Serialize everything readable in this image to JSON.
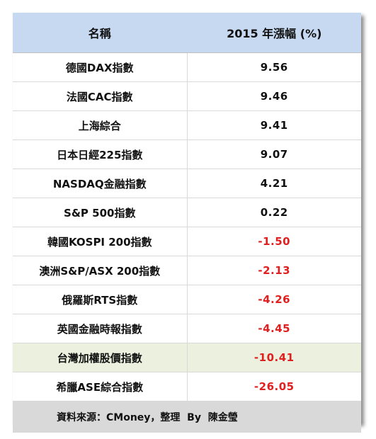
{
  "header": {
    "col_name": "名稱",
    "col_change": "2015 年漲幅 (%)"
  },
  "rows": [
    {
      "name": "德國DAX指數",
      "value": "9.56",
      "negative": false,
      "highlight": false
    },
    {
      "name": "法國CAC指數",
      "value": "9.46",
      "negative": false,
      "highlight": false
    },
    {
      "name": "上海綜合",
      "value": "9.41",
      "negative": false,
      "highlight": false
    },
    {
      "name": "日本日經225指數",
      "value": "9.07",
      "negative": false,
      "highlight": false
    },
    {
      "name": "NASDAQ金融指數",
      "value": "4.21",
      "negative": false,
      "highlight": false
    },
    {
      "name": "S&P 500指數",
      "value": "0.22",
      "negative": false,
      "highlight": false
    },
    {
      "name": "韓國KOSPI 200指數",
      "value": "-1.50",
      "negative": true,
      "highlight": false
    },
    {
      "name": "澳洲S&P/ASX 200指數",
      "value": "-2.13",
      "negative": true,
      "highlight": false
    },
    {
      "name": "俄羅斯RTS指數",
      "value": "-4.26",
      "negative": true,
      "highlight": false
    },
    {
      "name": "英國金融時報指數",
      "value": "-4.45",
      "negative": true,
      "highlight": false
    },
    {
      "name": "台灣加權股價指數",
      "value": "-10.41",
      "negative": true,
      "highlight": true
    },
    {
      "name": "希臘ASE綜合指數",
      "value": "-26.05",
      "negative": true,
      "highlight": false
    }
  ],
  "footer": {
    "source": "資料來源：CMoney，整理  By  陳金瑩"
  },
  "colors": {
    "header_bg": "#c6d9f1",
    "highlight_bg": "#ebf1de",
    "negative_text": "#e02020",
    "footer_bg": "#d9d9d9"
  }
}
